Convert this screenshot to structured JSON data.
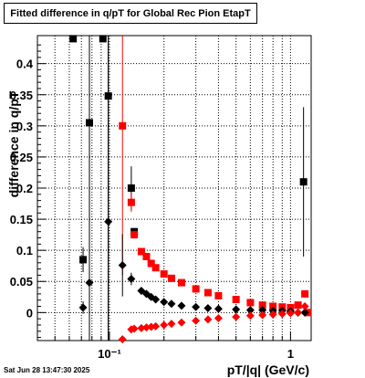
{
  "timestamp": "Sat Jun 28 13:47:30 2025",
  "chart_data": {
    "type": "scatter",
    "title": "Fitted difference in q/pT for Global Rec Pion EtapT",
    "xlabel": "pT/|q| (GeV/c)",
    "ylabel": "difference in q/pT",
    "xscale": "log",
    "xlim": [
      0.04,
      1.3
    ],
    "ylim": [
      -0.045,
      0.445
    ],
    "x_ticks": [
      {
        "value": 0.1,
        "label": "10⁻¹"
      },
      {
        "value": 1,
        "label": "1"
      }
    ],
    "y_ticks": [
      {
        "value": 0,
        "label": "0"
      },
      {
        "value": 0.05,
        "label": "0.05"
      },
      {
        "value": 0.1,
        "label": "0.1"
      },
      {
        "value": 0.15,
        "label": "0.15"
      },
      {
        "value": 0.2,
        "label": "0.2"
      },
      {
        "value": 0.25,
        "label": "0.25"
      },
      {
        "value": 0.3,
        "label": "0.3"
      },
      {
        "value": 0.35,
        "label": "0.35"
      },
      {
        "value": 0.4,
        "label": "0.4"
      }
    ],
    "grid": true,
    "series": [
      {
        "marker": "square",
        "color": "#000000",
        "points": [
          {
            "x": 0.0715,
            "y": 0.085,
            "err": 0.02
          },
          {
            "x": 0.0775,
            "y": 0.305,
            "err": 0.4
          },
          {
            "x": 0.0985,
            "y": 0.348,
            "err": 0.4
          },
          {
            "x": 0.132,
            "y": 0.2,
            "err": 0.035
          },
          {
            "x": 0.137,
            "y": 0.13,
            "err": 0.0
          },
          {
            "x": 1.18,
            "y": 0.21,
            "err": 0.12
          },
          {
            "x": 0.063,
            "y": 0.44,
            "err": 0.0,
            "clipped": true
          },
          {
            "x": 0.092,
            "y": 0.44,
            "err": 0.0,
            "clipped": true
          }
        ]
      },
      {
        "marker": "square",
        "color": "#ff0000",
        "points": [
          {
            "x": 0.118,
            "y": 0.3,
            "err": 0.24
          },
          {
            "x": 0.132,
            "y": 0.177,
            "err": 0.015
          },
          {
            "x": 0.137,
            "y": 0.125,
            "err": 0.0
          },
          {
            "x": 0.15,
            "y": 0.098,
            "err": 0.0
          },
          {
            "x": 0.16,
            "y": 0.09,
            "err": 0.0
          },
          {
            "x": 0.17,
            "y": 0.079,
            "err": 0.0
          },
          {
            "x": 0.18,
            "y": 0.072,
            "err": 0.0
          },
          {
            "x": 0.2,
            "y": 0.062,
            "err": 0.0
          },
          {
            "x": 0.22,
            "y": 0.055,
            "err": 0.0
          },
          {
            "x": 0.25,
            "y": 0.048,
            "err": 0.0
          },
          {
            "x": 0.3,
            "y": 0.038,
            "err": 0.0
          },
          {
            "x": 0.35,
            "y": 0.032,
            "err": 0.0
          },
          {
            "x": 0.4,
            "y": 0.027,
            "err": 0.0
          },
          {
            "x": 0.5,
            "y": 0.021,
            "err": 0.0
          },
          {
            "x": 0.6,
            "y": 0.016,
            "err": 0.0
          },
          {
            "x": 0.7,
            "y": 0.012,
            "err": 0.0
          },
          {
            "x": 0.8,
            "y": 0.01,
            "err": 0.0
          },
          {
            "x": 0.9,
            "y": 0.009,
            "err": 0.0
          },
          {
            "x": 1.0,
            "y": 0.008,
            "err": 0.0
          },
          {
            "x": 1.1,
            "y": 0.012,
            "err": 0.0
          },
          {
            "x": 1.2,
            "y": 0.03,
            "err": 0.0
          },
          {
            "x": 1.25,
            "y": 0.0,
            "err": 0.0
          }
        ]
      },
      {
        "marker": "diamond",
        "color": "#000000",
        "points": [
          {
            "x": 0.0715,
            "y": 0.008,
            "err": 0.01
          },
          {
            "x": 0.0775,
            "y": 0.048,
            "err": 0.1
          },
          {
            "x": 0.0985,
            "y": 0.146,
            "err": 0.4
          },
          {
            "x": 0.118,
            "y": 0.076,
            "err": 0.05
          },
          {
            "x": 0.132,
            "y": 0.054,
            "err": 0.01
          },
          {
            "x": 0.15,
            "y": 0.035,
            "err": 0.0
          },
          {
            "x": 0.16,
            "y": 0.03,
            "err": 0.0
          },
          {
            "x": 0.17,
            "y": 0.025,
            "err": 0.0
          },
          {
            "x": 0.18,
            "y": 0.021,
            "err": 0.0
          },
          {
            "x": 0.2,
            "y": 0.017,
            "err": 0.0
          },
          {
            "x": 0.22,
            "y": 0.014,
            "err": 0.0
          },
          {
            "x": 0.25,
            "y": 0.011,
            "err": 0.0
          },
          {
            "x": 0.3,
            "y": 0.009,
            "err": 0.0
          },
          {
            "x": 0.35,
            "y": 0.007,
            "err": 0.0
          },
          {
            "x": 0.4,
            "y": 0.006,
            "err": 0.0
          },
          {
            "x": 0.5,
            "y": 0.005,
            "err": 0.0
          },
          {
            "x": 0.6,
            "y": 0.004,
            "err": 0.0
          },
          {
            "x": 0.7,
            "y": 0.004,
            "err": 0.0
          },
          {
            "x": 0.8,
            "y": 0.003,
            "err": 0.0
          },
          {
            "x": 0.9,
            "y": 0.003,
            "err": 0.0
          },
          {
            "x": 1.0,
            "y": 0.002,
            "err": 0.0
          },
          {
            "x": 1.1,
            "y": 0.0,
            "err": 0.0
          },
          {
            "x": 1.2,
            "y": 0.0,
            "err": 0.0
          }
        ]
      },
      {
        "marker": "diamond",
        "color": "#ff0000",
        "points": [
          {
            "x": 0.118,
            "y": -0.043,
            "err": 0.0
          },
          {
            "x": 0.132,
            "y": -0.027,
            "err": 0.0
          },
          {
            "x": 0.137,
            "y": -0.026,
            "err": 0.0
          },
          {
            "x": 0.15,
            "y": -0.025,
            "err": 0.0
          },
          {
            "x": 0.16,
            "y": -0.024,
            "err": 0.0
          },
          {
            "x": 0.17,
            "y": -0.023,
            "err": 0.0
          },
          {
            "x": 0.18,
            "y": -0.022,
            "err": 0.0
          },
          {
            "x": 0.2,
            "y": -0.02,
            "err": 0.0
          },
          {
            "x": 0.22,
            "y": -0.018,
            "err": 0.0
          },
          {
            "x": 0.25,
            "y": -0.016,
            "err": 0.0
          },
          {
            "x": 0.3,
            "y": -0.013,
            "err": 0.0
          },
          {
            "x": 0.35,
            "y": -0.011,
            "err": 0.0
          },
          {
            "x": 0.4,
            "y": -0.009,
            "err": 0.0
          },
          {
            "x": 0.5,
            "y": -0.007,
            "err": 0.0
          },
          {
            "x": 0.6,
            "y": -0.005,
            "err": 0.0
          },
          {
            "x": 0.7,
            "y": -0.004,
            "err": 0.0
          },
          {
            "x": 0.8,
            "y": -0.003,
            "err": 0.0
          },
          {
            "x": 0.9,
            "y": -0.002,
            "err": 0.0
          },
          {
            "x": 1.0,
            "y": -0.001,
            "err": 0.0
          },
          {
            "x": 1.1,
            "y": 0.0,
            "err": 0.0
          },
          {
            "x": 1.2,
            "y": 0.01,
            "err": 0.0
          }
        ]
      }
    ]
  }
}
